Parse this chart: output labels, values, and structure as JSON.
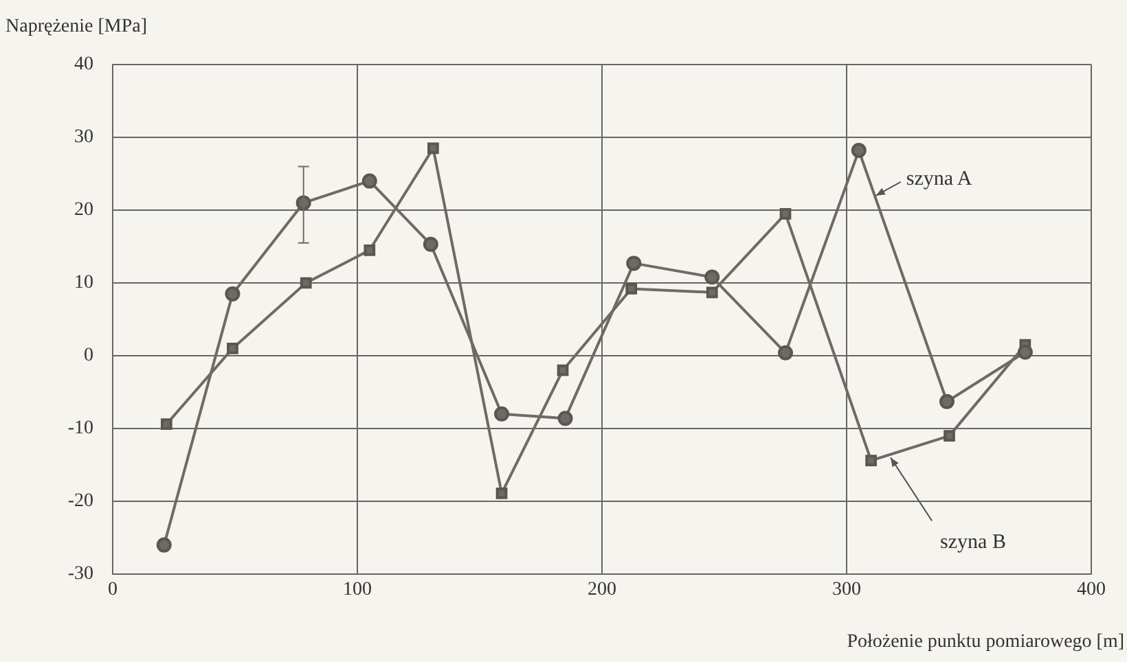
{
  "chart_data": {
    "type": "line",
    "xlabel": "Położenie punktu pomiarowego [m]",
    "ylabel": "Naprężenie [MPa]",
    "xlim": [
      0,
      400
    ],
    "xticks": [
      0,
      100,
      200,
      300,
      400
    ],
    "ylim": [
      -30,
      40
    ],
    "yticks": [
      -30,
      -20,
      -10,
      0,
      10,
      20,
      30,
      40
    ],
    "grid": true,
    "legend": false,
    "line_style": "solid",
    "series": [
      {
        "color": "#6e6a66",
        "marker": "circle",
        "x": [
          21,
          49,
          78,
          105,
          130,
          159,
          185,
          213,
          245,
          275,
          305,
          341,
          373
        ],
        "values": [
          -26,
          8.5,
          21,
          24,
          15.3,
          -8,
          -8.6,
          12.7,
          10.8,
          0.4,
          28.2,
          -6.3,
          0.5
        ],
        "errors": [
          null,
          null,
          [
            15.5,
            26
          ],
          null,
          null,
          null,
          null,
          null,
          null,
          null,
          null,
          null,
          null
        ]
      },
      {
        "color": "#6e6a66",
        "marker": "square",
        "x": [
          22,
          49,
          79,
          105,
          131,
          159,
          184,
          212,
          245,
          275,
          310,
          342,
          373
        ],
        "values": [
          -9.4,
          1,
          10,
          14.5,
          28.5,
          -18.9,
          -2,
          9.2,
          8.7,
          19.5,
          -14.4,
          -11,
          1.5
        ]
      }
    ],
    "annotations": [
      {
        "text": "szyna A",
        "x": 312,
        "y": 22
      },
      {
        "text": "szyna B",
        "x": 318,
        "y": -14
      }
    ]
  }
}
